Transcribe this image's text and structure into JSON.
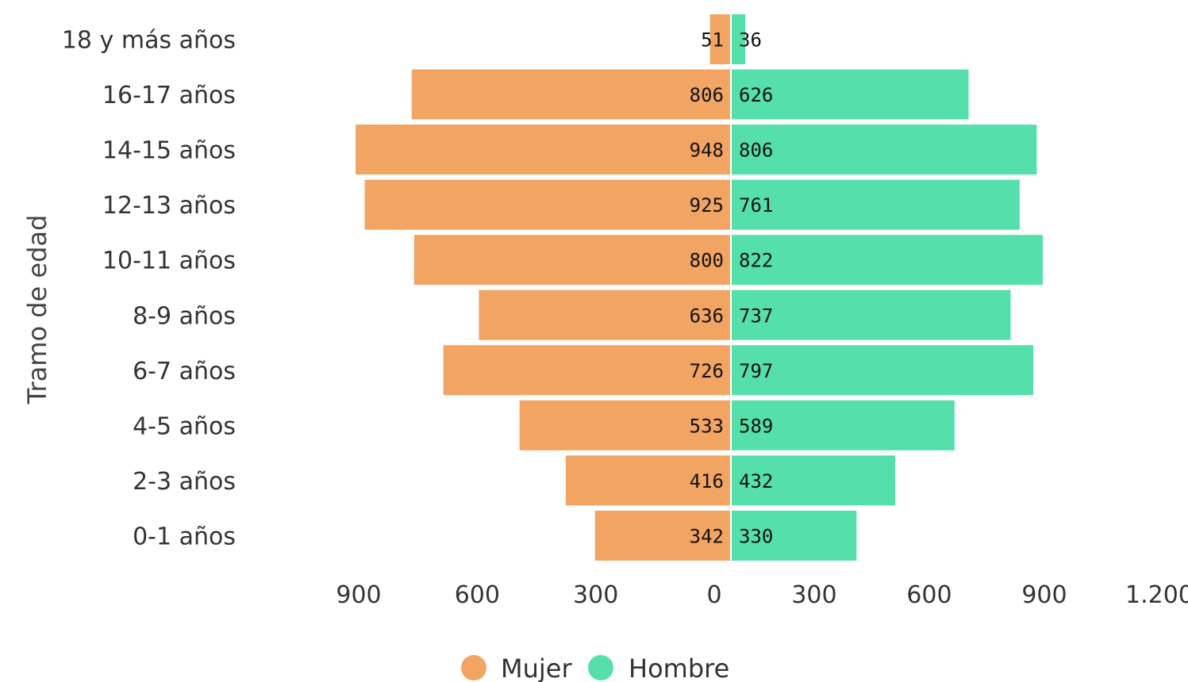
{
  "chart_data": {
    "type": "bar",
    "orientation": "horizontal",
    "layout": "population-pyramid",
    "ylabel": "Tramo de edad",
    "categories": [
      "18 y más años",
      "16-17 años",
      "14-15 años",
      "12-13 años",
      "10-11 años",
      "8-9 años",
      "6-7 años",
      "4-5 años",
      "2-3 años",
      "0-1 años"
    ],
    "series": [
      {
        "name": "Mujer",
        "color": "#F2A462",
        "side": "left",
        "values": [
          51,
          806,
          948,
          925,
          800,
          636,
          726,
          533,
          416,
          342
        ]
      },
      {
        "name": "Hombre",
        "color": "#55DFAB",
        "side": "right",
        "values": [
          36,
          626,
          806,
          761,
          822,
          737,
          797,
          589,
          432,
          330
        ]
      }
    ],
    "xticks": {
      "left": [
        "900",
        "600",
        "300",
        "0"
      ],
      "right": [
        "300",
        "600",
        "900",
        "1.200"
      ]
    },
    "legend": {
      "placement": "bottom-center",
      "entries": [
        "Mujer",
        "Hombre"
      ]
    },
    "grid": false
  }
}
